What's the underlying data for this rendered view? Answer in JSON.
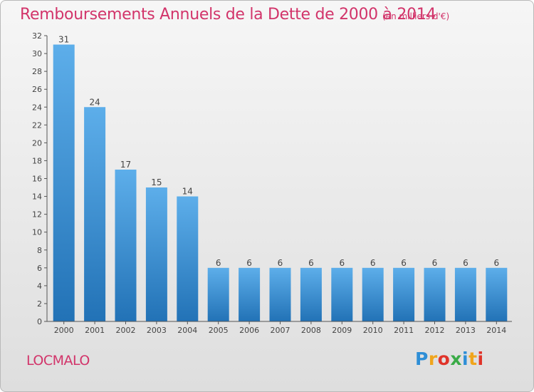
{
  "title": "Remboursements Annuels de la Dette de 2000 à 2014",
  "unit_label": "(en milliers d'€)",
  "commune": "LOCMALO",
  "logo": {
    "letters": [
      {
        "char": "P",
        "color": "#2e8ed6"
      },
      {
        "char": "r",
        "color": "#f0a51c"
      },
      {
        "char": "o",
        "color": "#e0342a"
      },
      {
        "char": "x",
        "color": "#3aab47"
      },
      {
        "char": "i",
        "color": "#2e8ed6"
      },
      {
        "char": "t",
        "color": "#f0a51c"
      },
      {
        "char": "i",
        "color": "#e0342a"
      }
    ]
  },
  "colors": {
    "bar_light": "#5daeea",
    "bar_dark": "#2272b6",
    "accent": "#d2346a"
  },
  "chart_data": {
    "type": "bar",
    "categories": [
      "2000",
      "2001",
      "2002",
      "2003",
      "2004",
      "2005",
      "2006",
      "2007",
      "2008",
      "2009",
      "2010",
      "2011",
      "2012",
      "2013",
      "2014"
    ],
    "values": [
      31,
      24,
      17,
      15,
      14,
      6,
      6,
      6,
      6,
      6,
      6,
      6,
      6,
      6,
      6
    ],
    "ylim": [
      0,
      32
    ],
    "yticks": [
      0,
      2,
      4,
      6,
      8,
      10,
      12,
      14,
      16,
      18,
      20,
      22,
      24,
      26,
      28,
      30,
      32
    ],
    "grid": false,
    "legend": "none"
  }
}
